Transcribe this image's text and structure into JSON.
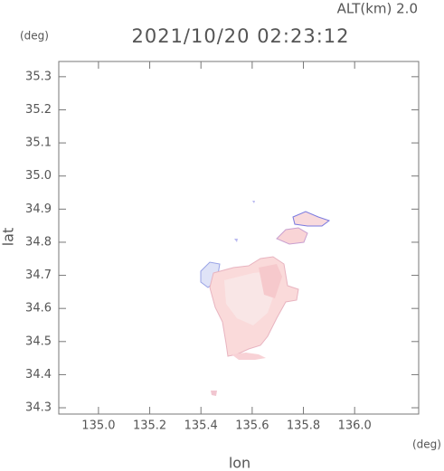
{
  "chart_data": {
    "type": "map",
    "title": "2021/10/20 02:23:12",
    "subtitle": "ALT(km) 2.0",
    "x_label": "lon",
    "y_label": "lat",
    "x_unit": "(deg)",
    "y_unit": "(deg)",
    "xlim": [
      134.845,
      136.25
    ],
    "ylim": [
      34.281,
      35.346
    ],
    "xticks": [
      {
        "value": 135,
        "label": "135.0"
      },
      135.2,
      135.4,
      135.6,
      135.8,
      {
        "value": 136,
        "label": "136.0"
      }
    ],
    "yticks": [
      34.3,
      34.4,
      34.5,
      34.6,
      34.7,
      34.8,
      34.9,
      {
        "value": 35,
        "label": "35.0"
      },
      35.1,
      35.2,
      35.3
    ]
  }
}
